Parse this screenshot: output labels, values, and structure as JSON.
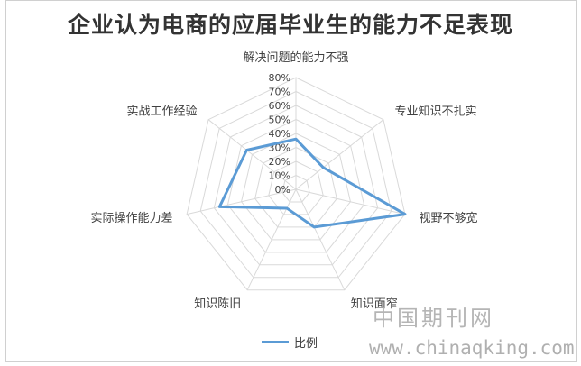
{
  "chart_data": {
    "type": "radar",
    "title": "企业认为电商的应届毕业生的能力不足表现",
    "categories": [
      "解决问题的能力不强",
      "专业知识不扎实",
      "视野不够宽",
      "知识面窄",
      "知识陈旧",
      "实际操作能力差",
      "实战工作经验"
    ],
    "series": [
      {
        "name": "比例",
        "values": [
          0.36,
          0.25,
          0.8,
          0.3,
          0.15,
          0.56,
          0.45
        ],
        "color": "#5B9BD5"
      }
    ],
    "rlim": [
      0,
      0.8
    ],
    "ticks": [
      "0%",
      "10%",
      "20%",
      "30%",
      "40%",
      "50%",
      "60%",
      "70%",
      "80%"
    ],
    "tick_values": [
      0,
      0.1,
      0.2,
      0.3,
      0.4,
      0.5,
      0.6,
      0.7,
      0.8
    ],
    "grid": true,
    "legend_position": "bottom",
    "gridline_color": "#d9d9d9"
  },
  "watermark": {
    "site_name": "中国期刊网",
    "url": "www.chinaqking.com"
  }
}
